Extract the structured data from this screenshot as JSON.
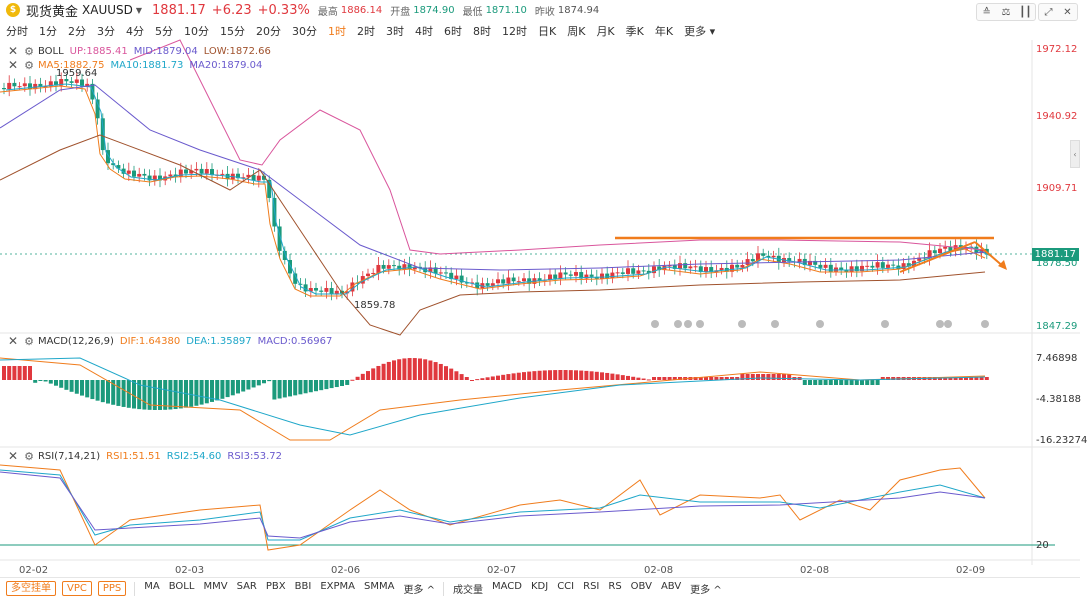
{
  "header": {
    "symbol_name": "现货黄金",
    "symbol_code": "XAUUSD",
    "last_price": "1881.17",
    "change": "+6.23",
    "change_pct": "+0.33%",
    "high_label": "最高",
    "high": "1886.14",
    "open_label": "开盘",
    "open": "1874.90",
    "low_label": "最低",
    "low": "1871.10",
    "prev_close_label": "昨收",
    "prev_close": "1874.94"
  },
  "periods": [
    "分时",
    "1分",
    "2分",
    "3分",
    "4分",
    "5分",
    "10分",
    "15分",
    "20分",
    "30分",
    "1时",
    "2时",
    "3时",
    "4时",
    "6时",
    "8时",
    "12时",
    "日K",
    "周K",
    "月K",
    "季K",
    "年K",
    "更多"
  ],
  "active_period": "1时",
  "main_pane": {
    "boll_title": "BOLL",
    "boll_up": "UP:1885.41",
    "boll_mid": "MID:1879.04",
    "boll_low": "LOW:1872.66",
    "ma5": "MA5:1882.75",
    "ma10": "MA10:1881.73",
    "ma20": "MA20:1879.04",
    "high_marker": "1959.64",
    "low_marker": "1859.78",
    "y_labels": [
      "1972.12",
      "1940.92",
      "1909.71",
      "1878.50",
      "1847.29"
    ],
    "current_price_tag": "1881.17"
  },
  "macd_pane": {
    "title": "MACD(12,26,9)",
    "dif": "DIF:1.64380",
    "dea": "DEA:1.35897",
    "macd": "MACD:0.56967",
    "y_labels": [
      "7.46898",
      "-4.38188",
      "-16.23274"
    ]
  },
  "rsi_pane": {
    "title": "RSI(7,14,21)",
    "rsi1": "RSI1:51.51",
    "rsi2": "RSI2:54.60",
    "rsi3": "RSI3:53.72",
    "y_labels": [
      "20"
    ]
  },
  "x_labels": [
    "02-02",
    "02-03",
    "02-06",
    "02-07",
    "02-08",
    "02-08",
    "02-09"
  ],
  "bottom": {
    "pills": [
      "多空挂单",
      "VPC",
      "PPS"
    ],
    "main_indicators": [
      "MA",
      "BOLL",
      "MMV",
      "SAR",
      "PBX",
      "BBI",
      "EXPMA",
      "SMMA",
      "更多 ^"
    ],
    "sub_indicators": [
      "成交量",
      "MACD",
      "KDJ",
      "CCI",
      "RSI",
      "RS",
      "OBV",
      "ABV",
      "更多 ^"
    ]
  },
  "colors": {
    "up": "#e0383e",
    "down": "#1b9a7c",
    "accent": "#f07c1c",
    "boll_up": "#d9559c",
    "boll_mid": "#6a5acd",
    "boll_low": "#a0522d",
    "ma5": "#f07c1c",
    "ma10": "#1fa7c9",
    "ma20": "#6a5acd"
  },
  "icons": [
    "gold-coin-icon",
    "chart-style-icon",
    "compare-icon",
    "candle-type-icon",
    "fullscreen-icon",
    "close-icon",
    "gear-icon"
  ]
}
